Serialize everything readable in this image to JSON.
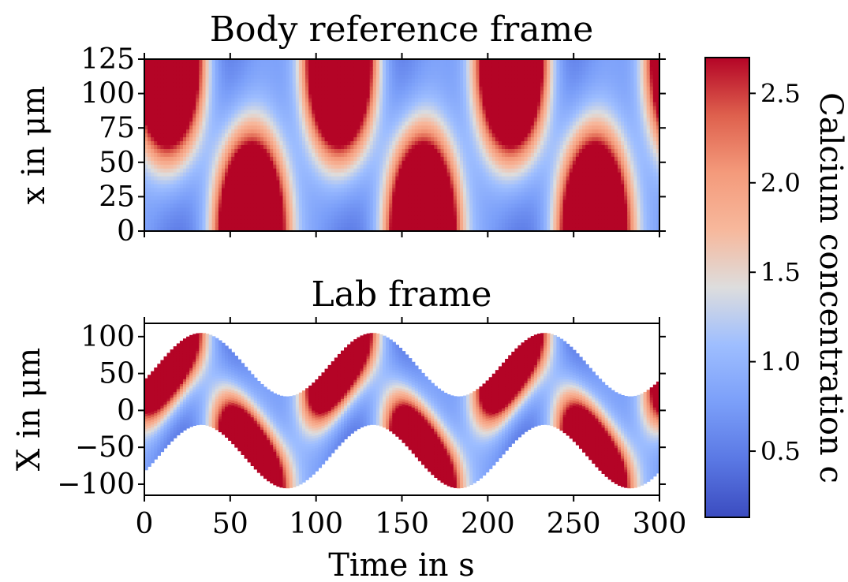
{
  "chart_data": [
    {
      "type": "heatmap",
      "title": "Body reference frame",
      "xlabel": "",
      "ylabel": "x in μm",
      "xlim": [
        0,
        300
      ],
      "ylim": [
        0,
        125
      ],
      "yticks": [
        "0",
        "25",
        "50",
        "75",
        "100",
        "125"
      ],
      "period_s": 100,
      "peaks": [
        {
          "t": 15,
          "x": 125,
          "c": 2.7
        },
        {
          "t": 63,
          "x": 0,
          "c": 2.7
        },
        {
          "t": 113,
          "x": 125,
          "c": 2.7
        },
        {
          "t": 163,
          "x": 0,
          "c": 2.7
        },
        {
          "t": 212,
          "x": 125,
          "c": 2.7
        },
        {
          "t": 262,
          "x": 0,
          "c": 2.7
        }
      ]
    },
    {
      "type": "heatmap",
      "title": "Lab frame",
      "xlabel": "Time in s",
      "ylabel": "X in μm",
      "xlim": [
        0,
        300
      ],
      "ylim": [
        -115,
        118
      ],
      "xticks": [
        "0",
        "50",
        "100",
        "150",
        "200",
        "250",
        "300"
      ],
      "yticks": [
        "−100",
        "−50",
        "0",
        "50",
        "100"
      ],
      "band_center_amplitude_um": 43,
      "band_center_zero_crossing_s": 8,
      "band_half_width_um": 62,
      "band_extent": {
        "top_max": 105,
        "top_min": 19,
        "bottom_max": -19,
        "bottom_min": -105
      }
    }
  ],
  "colorbar": {
    "label": "Calcium concentration c",
    "min": 0.13,
    "max": 2.7,
    "ticks": [
      "0.5",
      "1.0",
      "1.5",
      "2.0",
      "2.5"
    ],
    "colormap": "coolwarm",
    "low_color": "#3b4cc0",
    "mid_color": "#dddddd",
    "high_color": "#b40426"
  }
}
